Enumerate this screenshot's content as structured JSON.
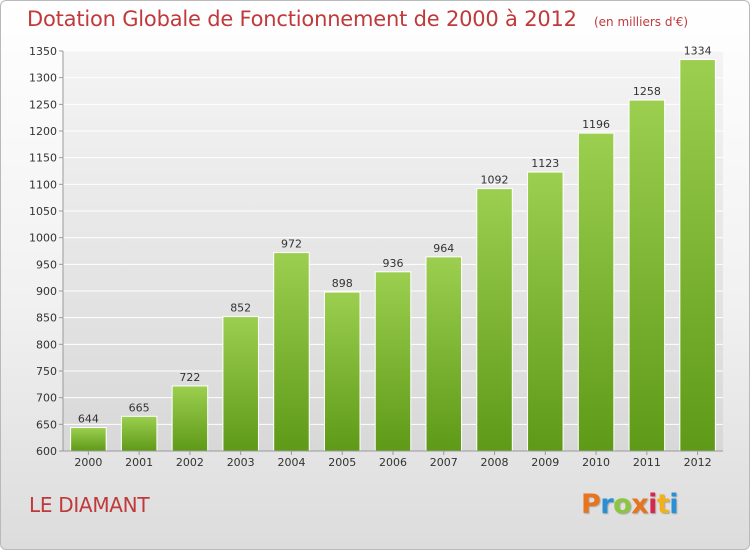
{
  "header": {
    "title": "Dotation Globale de Fonctionnement de 2000 à 2012",
    "subtitle": "(en milliers d'€)"
  },
  "footer": {
    "place": "LE DIAMANT",
    "logo": {
      "letters": [
        "P",
        "r",
        "o",
        "x",
        "i",
        "t",
        "i"
      ],
      "colors": [
        "#e8741e",
        "#2a8fd4",
        "#8cc63f",
        "#e8741e",
        "#d6284b",
        "#f2b11c",
        "#2a8fd4"
      ]
    }
  },
  "colors": {
    "title": "#c0393b",
    "bar_light": "#9ccf4f",
    "bar_dark": "#5e9a17",
    "text": "#333333",
    "grid": "#ffffff"
  },
  "chart_data": {
    "type": "bar",
    "title": "Dotation Globale de Fonctionnement de 2000 à 2012",
    "subtitle": "(en milliers d'€)",
    "xlabel": "",
    "ylabel": "",
    "categories": [
      "2000",
      "2001",
      "2002",
      "2003",
      "2004",
      "2005",
      "2006",
      "2007",
      "2008",
      "2009",
      "2010",
      "2011",
      "2012"
    ],
    "values": [
      644,
      665,
      722,
      852,
      972,
      898,
      936,
      964,
      1092,
      1123,
      1196,
      1258,
      1334
    ],
    "data_labels": [
      "644",
      "665",
      "722",
      "852",
      "972",
      "898",
      "936",
      "964",
      "1092",
      "1123",
      "1196",
      "1258",
      "1334"
    ],
    "ylim": [
      600,
      1350
    ],
    "yticks": [
      600,
      650,
      700,
      750,
      800,
      850,
      900,
      950,
      1000,
      1050,
      1100,
      1150,
      1200,
      1250,
      1300,
      1350
    ],
    "grid": true,
    "legend": "none"
  }
}
